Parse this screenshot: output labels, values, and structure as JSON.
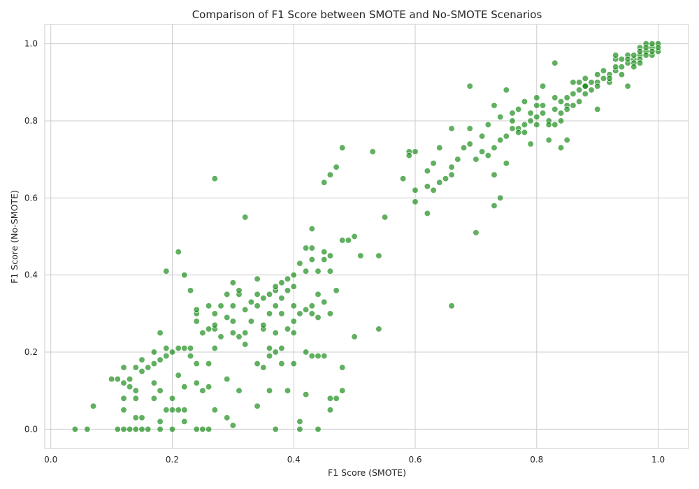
{
  "chart_data": {
    "type": "scatter",
    "title": "Comparison of F1 Score between SMOTE and No-SMOTE Scenarios",
    "xlabel": "F1 Score (SMOTE)",
    "ylabel": "F1 Score (No-SMOTE)",
    "xlim": [
      -0.01,
      1.05
    ],
    "ylim": [
      -0.05,
      1.05
    ],
    "xticks": [
      0.0,
      0.2,
      0.4,
      0.6,
      0.8,
      1.0
    ],
    "yticks": [
      0.0,
      0.2,
      0.4,
      0.6,
      0.8,
      1.0
    ],
    "xtick_labels": [
      "0.0",
      "0.2",
      "0.4",
      "0.6",
      "0.8",
      "1.0"
    ],
    "ytick_labels": [
      "0.0",
      "0.2",
      "0.4",
      "0.6",
      "0.8",
      "1.0"
    ],
    "grid": true,
    "color": "#008000",
    "points": [
      [
        0.04,
        0.0
      ],
      [
        0.06,
        0.0
      ],
      [
        0.07,
        0.06
      ],
      [
        0.11,
        0.0
      ],
      [
        0.12,
        0.0
      ],
      [
        0.13,
        0.0
      ],
      [
        0.14,
        0.0
      ],
      [
        0.15,
        0.0
      ],
      [
        0.16,
        0.0
      ],
      [
        0.18,
        0.0
      ],
      [
        0.2,
        0.0
      ],
      [
        0.24,
        0.0
      ],
      [
        0.25,
        0.0
      ],
      [
        0.26,
        0.0
      ],
      [
        0.37,
        0.0
      ],
      [
        0.41,
        0.0
      ],
      [
        0.44,
        0.0
      ],
      [
        0.3,
        0.01
      ],
      [
        0.18,
        0.02
      ],
      [
        0.22,
        0.02
      ],
      [
        0.41,
        0.02
      ],
      [
        0.14,
        0.03
      ],
      [
        0.15,
        0.03
      ],
      [
        0.29,
        0.03
      ],
      [
        0.12,
        0.05
      ],
      [
        0.19,
        0.05
      ],
      [
        0.2,
        0.05
      ],
      [
        0.21,
        0.05
      ],
      [
        0.22,
        0.05
      ],
      [
        0.27,
        0.05
      ],
      [
        0.46,
        0.05
      ],
      [
        0.34,
        0.06
      ],
      [
        0.14,
        0.08
      ],
      [
        0.17,
        0.08
      ],
      [
        0.46,
        0.08
      ],
      [
        0.12,
        0.08
      ],
      [
        0.2,
        0.08
      ],
      [
        0.47,
        0.08
      ],
      [
        0.48,
        0.1
      ],
      [
        0.36,
        0.1
      ],
      [
        0.39,
        0.1
      ],
      [
        0.42,
        0.09
      ],
      [
        0.13,
        0.11
      ],
      [
        0.14,
        0.1
      ],
      [
        0.18,
        0.1
      ],
      [
        0.22,
        0.11
      ],
      [
        0.25,
        0.1
      ],
      [
        0.31,
        0.1
      ],
      [
        0.12,
        0.12
      ],
      [
        0.17,
        0.12
      ],
      [
        0.24,
        0.12
      ],
      [
        0.26,
        0.11
      ],
      [
        0.11,
        0.13
      ],
      [
        0.13,
        0.13
      ],
      [
        0.1,
        0.13
      ],
      [
        0.29,
        0.13
      ],
      [
        0.21,
        0.14
      ],
      [
        0.12,
        0.16
      ],
      [
        0.15,
        0.15
      ],
      [
        0.14,
        0.16
      ],
      [
        0.16,
        0.16
      ],
      [
        0.17,
        0.17
      ],
      [
        0.24,
        0.17
      ],
      [
        0.26,
        0.17
      ],
      [
        0.34,
        0.17
      ],
      [
        0.35,
        0.16
      ],
      [
        0.38,
        0.17
      ],
      [
        0.4,
        0.17
      ],
      [
        0.15,
        0.18
      ],
      [
        0.18,
        0.18
      ],
      [
        0.19,
        0.19
      ],
      [
        0.2,
        0.2
      ],
      [
        0.23,
        0.19
      ],
      [
        0.36,
        0.19
      ],
      [
        0.37,
        0.2
      ],
      [
        0.43,
        0.19
      ],
      [
        0.44,
        0.19
      ],
      [
        0.42,
        0.2
      ],
      [
        0.45,
        0.19
      ],
      [
        0.48,
        0.16
      ],
      [
        0.21,
        0.21
      ],
      [
        0.22,
        0.21
      ],
      [
        0.27,
        0.21
      ],
      [
        0.32,
        0.22
      ],
      [
        0.36,
        0.21
      ],
      [
        0.38,
        0.21
      ],
      [
        0.5,
        0.24
      ],
      [
        0.17,
        0.2
      ],
      [
        0.19,
        0.21
      ],
      [
        0.23,
        0.21
      ],
      [
        0.31,
        0.24
      ],
      [
        0.25,
        0.25
      ],
      [
        0.26,
        0.26
      ],
      [
        0.27,
        0.26
      ],
      [
        0.28,
        0.24
      ],
      [
        0.3,
        0.25
      ],
      [
        0.32,
        0.25
      ],
      [
        0.35,
        0.26
      ],
      [
        0.37,
        0.25
      ],
      [
        0.4,
        0.25
      ],
      [
        0.39,
        0.26
      ],
      [
        0.54,
        0.26
      ],
      [
        0.18,
        0.25
      ],
      [
        0.24,
        0.28
      ],
      [
        0.27,
        0.27
      ],
      [
        0.29,
        0.29
      ],
      [
        0.3,
        0.28
      ],
      [
        0.33,
        0.28
      ],
      [
        0.35,
        0.27
      ],
      [
        0.4,
        0.28
      ],
      [
        0.44,
        0.29
      ],
      [
        0.43,
        0.3
      ],
      [
        0.24,
        0.3
      ],
      [
        0.27,
        0.3
      ],
      [
        0.32,
        0.31
      ],
      [
        0.36,
        0.3
      ],
      [
        0.38,
        0.3
      ],
      [
        0.41,
        0.3
      ],
      [
        0.42,
        0.31
      ],
      [
        0.46,
        0.3
      ],
      [
        0.24,
        0.31
      ],
      [
        0.26,
        0.32
      ],
      [
        0.28,
        0.32
      ],
      [
        0.3,
        0.32
      ],
      [
        0.33,
        0.33
      ],
      [
        0.34,
        0.32
      ],
      [
        0.37,
        0.32
      ],
      [
        0.4,
        0.32
      ],
      [
        0.43,
        0.32
      ],
      [
        0.45,
        0.33
      ],
      [
        0.29,
        0.35
      ],
      [
        0.31,
        0.35
      ],
      [
        0.35,
        0.34
      ],
      [
        0.36,
        0.35
      ],
      [
        0.37,
        0.36
      ],
      [
        0.38,
        0.34
      ],
      [
        0.39,
        0.36
      ],
      [
        0.44,
        0.35
      ],
      [
        0.47,
        0.36
      ],
      [
        0.23,
        0.36
      ],
      [
        0.31,
        0.36
      ],
      [
        0.34,
        0.35
      ],
      [
        0.37,
        0.37
      ],
      [
        0.38,
        0.38
      ],
      [
        0.39,
        0.39
      ],
      [
        0.4,
        0.4
      ],
      [
        0.4,
        0.37
      ],
      [
        0.3,
        0.38
      ],
      [
        0.34,
        0.39
      ],
      [
        0.22,
        0.4
      ],
      [
        0.19,
        0.41
      ],
      [
        0.42,
        0.41
      ],
      [
        0.44,
        0.41
      ],
      [
        0.46,
        0.41
      ],
      [
        0.41,
        0.43
      ],
      [
        0.45,
        0.44
      ],
      [
        0.43,
        0.44
      ],
      [
        0.21,
        0.46
      ],
      [
        0.42,
        0.47
      ],
      [
        0.43,
        0.47
      ],
      [
        0.45,
        0.46
      ],
      [
        0.46,
        0.45
      ],
      [
        0.48,
        0.49
      ],
      [
        0.49,
        0.49
      ],
      [
        0.5,
        0.5
      ],
      [
        0.51,
        0.45
      ],
      [
        0.54,
        0.45
      ],
      [
        0.43,
        0.52
      ],
      [
        0.32,
        0.55
      ],
      [
        0.55,
        0.55
      ],
      [
        0.6,
        0.59
      ],
      [
        0.62,
        0.56
      ],
      [
        0.27,
        0.65
      ],
      [
        0.45,
        0.64
      ],
      [
        0.46,
        0.66
      ],
      [
        0.47,
        0.68
      ],
      [
        0.48,
        0.73
      ],
      [
        0.53,
        0.72
      ],
      [
        0.58,
        0.65
      ],
      [
        0.59,
        0.72
      ],
      [
        0.6,
        0.72
      ],
      [
        0.59,
        0.71
      ],
      [
        0.6,
        0.62
      ],
      [
        0.62,
        0.63
      ],
      [
        0.62,
        0.67
      ],
      [
        0.63,
        0.62
      ],
      [
        0.64,
        0.64
      ],
      [
        0.64,
        0.73
      ],
      [
        0.63,
        0.69
      ],
      [
        0.65,
        0.65
      ],
      [
        0.66,
        0.32
      ],
      [
        0.66,
        0.68
      ],
      [
        0.66,
        0.66
      ],
      [
        0.67,
        0.7
      ],
      [
        0.68,
        0.73
      ],
      [
        0.69,
        0.74
      ],
      [
        0.7,
        0.51
      ],
      [
        0.7,
        0.7
      ],
      [
        0.71,
        0.72
      ],
      [
        0.72,
        0.71
      ],
      [
        0.73,
        0.66
      ],
      [
        0.73,
        0.58
      ],
      [
        0.73,
        0.73
      ],
      [
        0.74,
        0.6
      ],
      [
        0.74,
        0.75
      ],
      [
        0.75,
        0.76
      ],
      [
        0.75,
        0.69
      ],
      [
        0.76,
        0.78
      ],
      [
        0.77,
        0.78
      ],
      [
        0.78,
        0.77
      ],
      [
        0.79,
        0.74
      ],
      [
        0.79,
        0.8
      ],
      [
        0.8,
        0.81
      ],
      [
        0.8,
        0.79
      ],
      [
        0.81,
        0.82
      ],
      [
        0.82,
        0.8
      ],
      [
        0.82,
        0.75
      ],
      [
        0.83,
        0.83
      ],
      [
        0.84,
        0.8
      ],
      [
        0.84,
        0.73
      ],
      [
        0.85,
        0.75
      ],
      [
        0.85,
        0.84
      ],
      [
        0.85,
        0.86
      ],
      [
        0.86,
        0.84
      ],
      [
        0.87,
        0.88
      ],
      [
        0.88,
        0.87
      ],
      [
        0.88,
        0.89
      ],
      [
        0.89,
        0.88
      ],
      [
        0.89,
        0.9
      ],
      [
        0.9,
        0.83
      ],
      [
        0.9,
        0.9
      ],
      [
        0.91,
        0.91
      ],
      [
        0.92,
        0.92
      ],
      [
        0.93,
        0.93
      ],
      [
        0.93,
        0.96
      ],
      [
        0.94,
        0.94
      ],
      [
        0.95,
        0.95
      ],
      [
        0.95,
        0.89
      ],
      [
        0.96,
        0.96
      ],
      [
        0.97,
        0.97
      ],
      [
        0.97,
        0.96
      ],
      [
        0.98,
        0.98
      ],
      [
        0.99,
        0.99
      ],
      [
        1.0,
        1.0
      ],
      [
        1.0,
        0.98
      ],
      [
        0.99,
        0.97
      ],
      [
        0.98,
        1.0
      ],
      [
        0.97,
        0.99
      ],
      [
        0.96,
        0.95
      ],
      [
        0.95,
        0.97
      ],
      [
        0.94,
        0.96
      ],
      [
        0.66,
        0.78
      ],
      [
        0.69,
        0.78
      ],
      [
        0.69,
        0.89
      ],
      [
        0.73,
        0.84
      ],
      [
        0.75,
        0.88
      ],
      [
        0.76,
        0.82
      ],
      [
        0.77,
        0.83
      ],
      [
        0.78,
        0.85
      ],
      [
        0.79,
        0.82
      ],
      [
        0.8,
        0.86
      ],
      [
        0.81,
        0.89
      ],
      [
        0.83,
        0.95
      ],
      [
        0.82,
        0.79
      ],
      [
        0.83,
        0.79
      ],
      [
        0.84,
        0.82
      ],
      [
        0.86,
        0.87
      ],
      [
        0.86,
        0.9
      ],
      [
        0.87,
        0.85
      ],
      [
        0.88,
        0.89
      ],
      [
        0.9,
        0.92
      ],
      [
        0.91,
        0.93
      ],
      [
        0.92,
        0.9
      ],
      [
        0.93,
        0.97
      ],
      [
        0.94,
        0.92
      ],
      [
        0.96,
        0.94
      ],
      [
        0.97,
        0.95
      ],
      [
        0.98,
        0.97
      ],
      [
        0.99,
        0.98
      ],
      [
        0.71,
        0.76
      ],
      [
        0.72,
        0.79
      ],
      [
        0.74,
        0.81
      ],
      [
        0.76,
        0.8
      ],
      [
        0.77,
        0.77
      ],
      [
        0.78,
        0.79
      ],
      [
        0.8,
        0.84
      ],
      [
        0.81,
        0.84
      ],
      [
        0.83,
        0.86
      ],
      [
        0.84,
        0.85
      ],
      [
        0.85,
        0.83
      ],
      [
        0.87,
        0.9
      ],
      [
        0.88,
        0.91
      ],
      [
        0.9,
        0.89
      ],
      [
        0.92,
        0.91
      ],
      [
        0.93,
        0.94
      ],
      [
        0.95,
        0.96
      ],
      [
        0.96,
        0.97
      ],
      [
        0.97,
        0.98
      ],
      [
        0.98,
        0.99
      ],
      [
        1.0,
        0.99
      ],
      [
        0.99,
        1.0
      ]
    ]
  }
}
